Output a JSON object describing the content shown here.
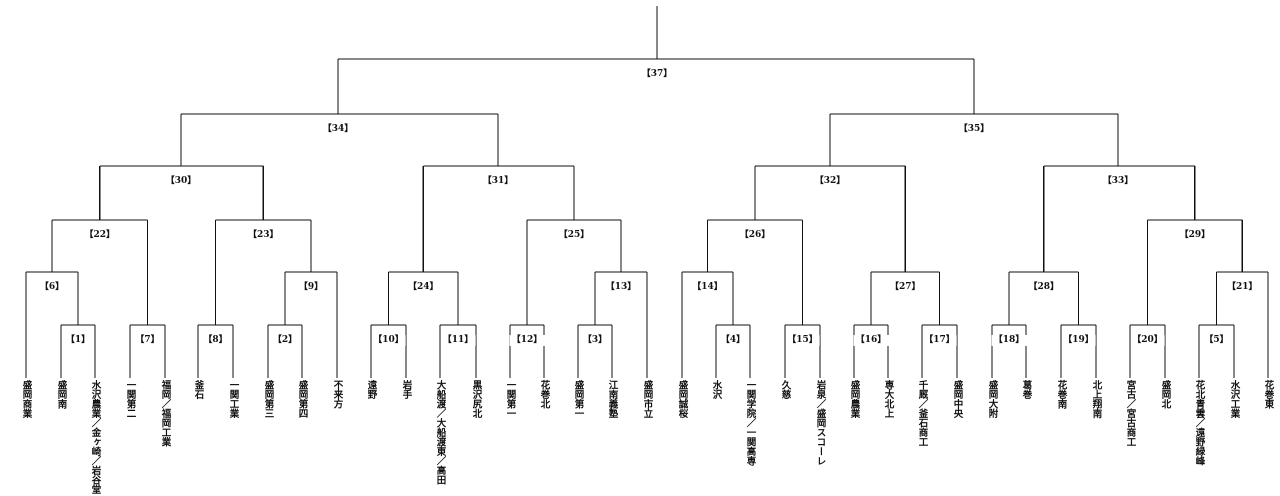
{
  "teams": [
    "盛岡商業",
    "盛岡南",
    "水沢農業／金ヶ崎／岩谷堂",
    "一関第二",
    "福岡／福岡工業",
    "釜石",
    "一関工業",
    "盛岡第三",
    "盛岡第四",
    "不来方",
    "遠野",
    "岩手",
    "大船渡／大船渡東／高田",
    "黒沢尻北",
    "一関第一",
    "花巻北",
    "盛岡第一",
    "江南義塾",
    "盛岡市立",
    "盛岡誠桜",
    "水沢",
    "一関学院／一関高専",
    "久慈",
    "岩泉／盛岡スコーレ",
    "盛岡農業",
    "専大北上",
    "千厩／釜石商工",
    "盛岡中央",
    "盛岡大附",
    "葛巻",
    "花巻南",
    "北上翔南",
    "宮古／宮古商工",
    "盛岡北",
    "花北青雲／遠野緑峰",
    "水沢工業",
    "花巻東"
  ],
  "matches": [
    {
      "label": "【1】",
      "left": "盛岡南",
      "right": "水沢農業／金ヶ崎／岩谷堂"
    },
    {
      "label": "【2】",
      "left": "盛岡第三",
      "right": "盛岡第四"
    },
    {
      "label": "【3】",
      "left": "盛岡第一",
      "right": "江南義塾"
    },
    {
      "label": "【4】",
      "left": "水沢",
      "right": "一関学院／一関高専"
    },
    {
      "label": "【5】",
      "left": "花北青雲／遠野緑峰",
      "right": "水沢工業"
    },
    {
      "label": "【6】",
      "left": "盛岡商業",
      "right": "【1】"
    },
    {
      "label": "【7】",
      "left": "一関第二",
      "right": "福岡／福岡工業"
    },
    {
      "label": "【8】",
      "left": "釜石",
      "right": "一関工業"
    },
    {
      "label": "【9】",
      "left": "【2】",
      "right": "不来方"
    },
    {
      "label": "【10】",
      "left": "遠野",
      "right": "岩手"
    },
    {
      "label": "【11】",
      "left": "大船渡／大船渡東／高田",
      "right": "黒沢尻北"
    },
    {
      "label": "【12】",
      "left": "一関第一",
      "right": "花巻北"
    },
    {
      "label": "【13】",
      "left": "【3】",
      "right": "盛岡市立"
    },
    {
      "label": "【14】",
      "left": "盛岡誠桜",
      "right": "【4】"
    },
    {
      "label": "【15】",
      "left": "久慈",
      "right": "岩泉／盛岡スコーレ"
    },
    {
      "label": "【16】",
      "left": "盛岡農業",
      "right": "専大北上"
    },
    {
      "label": "【17】",
      "left": "千厩／釜石商工",
      "right": "盛岡中央"
    },
    {
      "label": "【18】",
      "left": "盛岡大附",
      "right": "葛巻"
    },
    {
      "label": "【19】",
      "left": "花巻南",
      "right": "北上翔南"
    },
    {
      "label": "【20】",
      "left": "宮古／宮古商工",
      "right": "盛岡北"
    },
    {
      "label": "【21】",
      "left": "【5】",
      "right": "花巻東"
    },
    {
      "label": "【22】",
      "left": "【6】",
      "right": "【7】"
    },
    {
      "label": "【23】",
      "left": "【8】",
      "right": "【9】"
    },
    {
      "label": "【24】",
      "left": "【10】",
      "right": "【11】"
    },
    {
      "label": "【25】",
      "left": "【12】",
      "right": "【13】"
    },
    {
      "label": "【26】",
      "left": "【14】",
      "right": "【15】"
    },
    {
      "label": "【27】",
      "left": "【16】",
      "right": "【17】"
    },
    {
      "label": "【28】",
      "left": "【18】",
      "right": "【19】"
    },
    {
      "label": "【29】",
      "left": "【20】",
      "right": "【21】"
    },
    {
      "label": "【30】",
      "left": "【22】",
      "right": "【23】"
    },
    {
      "label": "【31】",
      "left": "【24】",
      "right": "【25】"
    },
    {
      "label": "【32】",
      "left": "【26】",
      "right": "【27】"
    },
    {
      "label": "【33】",
      "left": "【28】",
      "right": "【29】"
    },
    {
      "label": "【34】",
      "left": "【30】",
      "right": "【31】"
    },
    {
      "label": "【35】",
      "left": "【32】",
      "right": "【33】"
    },
    {
      "label": "【37】",
      "left": "【34】",
      "right": "【35】"
    }
  ]
}
